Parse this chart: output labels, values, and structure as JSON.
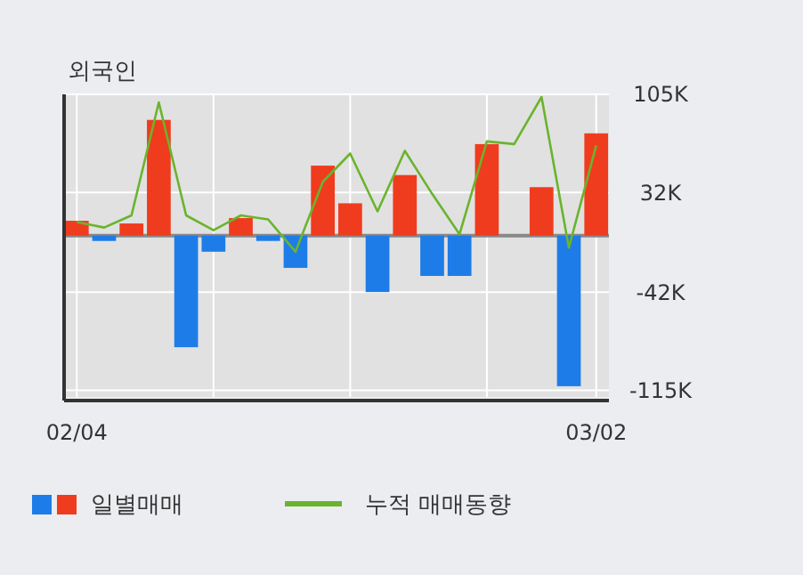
{
  "chart_data": {
    "type": "bar",
    "title": "외국인",
    "categories": [
      "02/04",
      null,
      null,
      null,
      null,
      null,
      null,
      null,
      null,
      null,
      null,
      null,
      null,
      null,
      null,
      null,
      null,
      null,
      null,
      "03/02"
    ],
    "series": [
      {
        "name": "일별매매",
        "colors": [
          "#f03c1e",
          "#1e7ce8",
          "#f03c1e",
          "#f03c1e",
          "#1e7ce8",
          "#1e7ce8",
          "#f03c1e",
          "#1e7ce8",
          "#1e7ce8",
          "#f03c1e",
          "#f03c1e",
          "#1e7ce8",
          "#f03c1e",
          "#1e7ce8",
          "#1e7ce8",
          "#f03c1e",
          null,
          "#f03c1e",
          "#1e7ce8",
          "#f03c1e"
        ],
        "values": [
          11,
          -4,
          9,
          86,
          -83,
          -12,
          13,
          -4,
          -24,
          52,
          24,
          -42,
          45,
          -30,
          -30,
          68,
          null,
          36,
          -112,
          76
        ]
      },
      {
        "name": "누적 매매동향",
        "type": "line",
        "color": "#6ab42d",
        "values": [
          10,
          6,
          15,
          99,
          15,
          4,
          15,
          12,
          -12,
          40,
          61,
          18,
          63,
          31,
          1,
          70,
          68,
          103,
          -9,
          67
        ]
      }
    ],
    "ylim": [
      -120,
      105
    ],
    "yticks": [
      {
        "value": 105,
        "label": "105K"
      },
      {
        "value": 32,
        "label": "32K"
      },
      {
        "value": -42,
        "label": "-42K"
      },
      {
        "value": -115,
        "label": "-115K"
      }
    ],
    "grid": true,
    "legend": "bottom"
  }
}
